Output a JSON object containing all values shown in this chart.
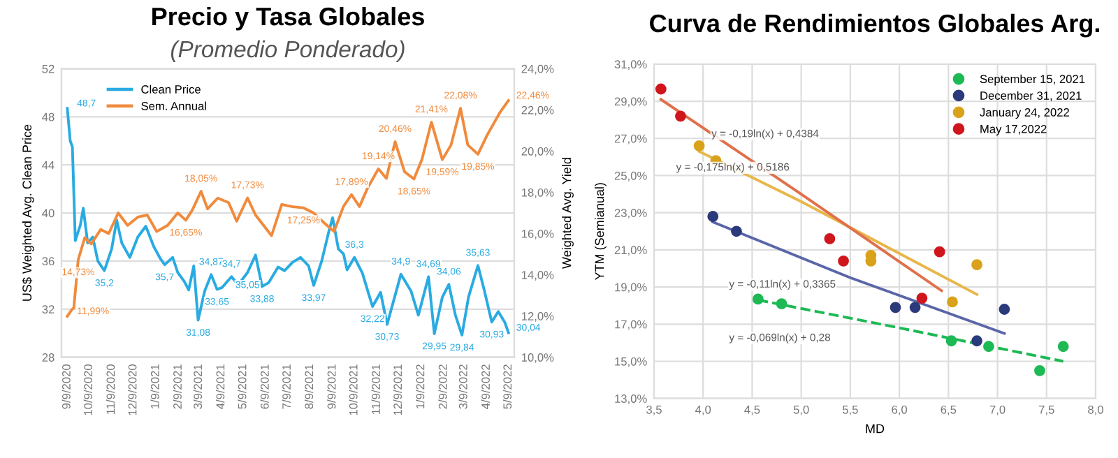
{
  "chart_data": [
    {
      "type": "line",
      "title": "Precio y Tasa Globales",
      "subtitle": "(Promedio Ponderado)",
      "ylabel": "US$ Weighted Avg. Clean Price",
      "y2label": "Weighted Avg. Yield",
      "xlim": [
        "2020-09-01",
        "2022-05-17"
      ],
      "ylim": [
        28,
        52
      ],
      "yticks": [
        28,
        32,
        36,
        40,
        44,
        48,
        52
      ],
      "y2lim": [
        10,
        24
      ],
      "y2ticks": [
        {
          "value": 10,
          "label": "10,0%"
        },
        {
          "value": 12,
          "label": "12,0%"
        },
        {
          "value": 14,
          "label": "14,0%"
        },
        {
          "value": 16,
          "label": "16,0%"
        },
        {
          "value": 18,
          "label": "18,0%"
        },
        {
          "value": 20,
          "label": "20,0%"
        },
        {
          "value": 22,
          "label": "22,0%"
        },
        {
          "value": 24,
          "label": "24,0%"
        }
      ],
      "xticks": [
        {
          "value": "2020-09-09",
          "label": "9/9/2020"
        },
        {
          "value": "2020-10-09",
          "label": "10/9/2020"
        },
        {
          "value": "2020-11-09",
          "label": "11/9/2020"
        },
        {
          "value": "2020-12-09",
          "label": "12/9/2020"
        },
        {
          "value": "2021-01-09",
          "label": "1/9/2021"
        },
        {
          "value": "2021-02-09",
          "label": "2/9/2021"
        },
        {
          "value": "2021-03-09",
          "label": "3/9/2021"
        },
        {
          "value": "2021-04-09",
          "label": "4/9/2021"
        },
        {
          "value": "2021-05-09",
          "label": "5/9/2021"
        },
        {
          "value": "2021-06-09",
          "label": "6/9/2021"
        },
        {
          "value": "2021-07-09",
          "label": "7/9/2021"
        },
        {
          "value": "2021-08-09",
          "label": "8/9/2021"
        },
        {
          "value": "2021-09-09",
          "label": "9/9/2021"
        },
        {
          "value": "2021-10-09",
          "label": "10/9/2021"
        },
        {
          "value": "2021-11-09",
          "label": "11/9/2021"
        },
        {
          "value": "2021-12-09",
          "label": "12/9/2021"
        },
        {
          "value": "2022-01-09",
          "label": "1/9/2022"
        },
        {
          "value": "2022-02-09",
          "label": "2/9/2022"
        },
        {
          "value": "2022-03-09",
          "label": "3/9/2022"
        },
        {
          "value": "2022-04-09",
          "label": "4/9/2022"
        },
        {
          "value": "2022-05-09",
          "label": "5/9/2022"
        }
      ],
      "grid": "y",
      "legend": "top left",
      "marker": "none",
      "line_style": "solid",
      "series": [
        {
          "name": "Clean Price",
          "color": "#29abe2",
          "axis": "y",
          "x": [
            "2020-09-09",
            "2020-09-13",
            "2020-09-16",
            "2020-09-20",
            "2020-09-27",
            "2020-10-01",
            "2020-10-07",
            "2020-10-14",
            "2020-10-21",
            "2020-10-30",
            "2020-11-09",
            "2020-11-16",
            "2020-11-23",
            "2020-12-04",
            "2020-12-15",
            "2020-12-26",
            "2021-01-06",
            "2021-01-15",
            "2021-01-21",
            "2021-02-01",
            "2021-02-08",
            "2021-02-17",
            "2021-02-23",
            "2021-03-02",
            "2021-03-08",
            "2021-03-17",
            "2021-03-26",
            "2021-04-03",
            "2021-04-10",
            "2021-04-23",
            "2021-05-02",
            "2021-05-15",
            "2021-05-26",
            "2021-06-04",
            "2021-06-13",
            "2021-06-26",
            "2021-07-05",
            "2021-07-16",
            "2021-07-27",
            "2021-08-07",
            "2021-08-14",
            "2021-08-25",
            "2021-09-04",
            "2021-09-09",
            "2021-09-17",
            "2021-09-24",
            "2021-09-29",
            "2021-10-09",
            "2021-10-20",
            "2021-10-29",
            "2021-11-03",
            "2021-11-14",
            "2021-11-23",
            "2021-12-12",
            "2021-12-26",
            "2022-01-05",
            "2022-01-19",
            "2022-01-27",
            "2022-02-07",
            "2022-02-16",
            "2022-02-25",
            "2022-03-06",
            "2022-03-15",
            "2022-03-28",
            "2022-04-06",
            "2022-04-16",
            "2022-04-25",
            "2022-05-04",
            "2022-05-09"
          ],
          "values": [
            48.7,
            46.0,
            45.5,
            37.7,
            39.0,
            40.4,
            37.5,
            38.0,
            36.0,
            35.2,
            37.0,
            39.4,
            37.5,
            36.3,
            38.0,
            38.9,
            37.2,
            36.2,
            35.7,
            36.3,
            35.04,
            34.3,
            33.6,
            35.6,
            31.08,
            33.5,
            34.87,
            33.65,
            33.8,
            34.7,
            34.0,
            35.05,
            36.5,
            33.88,
            34.2,
            35.5,
            35.2,
            35.9,
            36.3,
            35.6,
            33.97,
            36.0,
            38.5,
            39.6,
            37.0,
            36.6,
            35.27,
            36.3,
            35.0,
            33.2,
            32.22,
            33.4,
            30.73,
            34.9,
            33.5,
            31.5,
            34.69,
            29.95,
            33.0,
            34.06,
            31.5,
            29.84,
            33.0,
            35.63,
            33.5,
            30.93,
            31.8,
            30.9,
            30.04
          ],
          "value_labels": [
            "48,7",
            null,
            null,
            null,
            null,
            null,
            null,
            null,
            null,
            "35,2",
            null,
            null,
            null,
            null,
            null,
            null,
            null,
            null,
            "35,7",
            null,
            null,
            null,
            null,
            null,
            "31,08",
            null,
            "34,87",
            "33,65",
            null,
            "34,7",
            null,
            "35,05",
            null,
            "33,88",
            null,
            null,
            null,
            null,
            null,
            null,
            "33,97",
            null,
            null,
            null,
            null,
            null,
            null,
            "36,3",
            null,
            null,
            "32,22",
            null,
            "30,73",
            "34,9",
            null,
            null,
            "34,69",
            "29,95",
            null,
            "34,06",
            null,
            "29,84",
            null,
            "35,63",
            null,
            "30,93",
            null,
            null,
            "30,04"
          ]
        },
        {
          "name": "Sem. Annual",
          "color": "#f08a3c",
          "axis": "y2",
          "x": [
            "2020-09-09",
            "2020-09-15",
            "2020-09-18",
            "2020-09-24",
            "2020-10-03",
            "2020-10-12",
            "2020-10-25",
            "2020-11-05",
            "2020-11-18",
            "2020-12-01",
            "2020-12-15",
            "2020-12-28",
            "2021-01-10",
            "2021-01-25",
            "2021-02-08",
            "2021-02-19",
            "2021-02-28",
            "2021-03-12",
            "2021-03-21",
            "2021-04-04",
            "2021-04-19",
            "2021-04-30",
            "2021-05-15",
            "2021-05-26",
            "2021-06-06",
            "2021-06-17",
            "2021-07-01",
            "2021-07-16",
            "2021-07-31",
            "2021-08-14",
            "2021-08-29",
            "2021-09-11",
            "2021-09-24",
            "2021-10-05",
            "2021-10-16",
            "2021-10-27",
            "2021-11-11",
            "2021-11-22",
            "2021-12-04",
            "2021-12-17",
            "2021-12-30",
            "2022-01-10",
            "2022-01-23",
            "2022-02-07",
            "2022-02-19",
            "2022-03-04",
            "2022-03-14",
            "2022-03-28",
            "2022-04-10",
            "2022-04-28",
            "2022-05-09"
          ],
          "values": [
            11.99,
            12.3,
            12.4,
            14.73,
            15.8,
            15.5,
            16.2,
            16.0,
            17.0,
            16.4,
            16.8,
            16.9,
            16.1,
            16.4,
            17.0,
            16.65,
            17.14,
            18.05,
            17.2,
            17.72,
            17.5,
            16.6,
            17.73,
            16.9,
            16.4,
            15.9,
            17.41,
            17.3,
            17.25,
            17.0,
            16.5,
            16.1,
            17.32,
            17.89,
            17.31,
            18.2,
            19.14,
            18.68,
            20.46,
            19.0,
            18.65,
            19.6,
            21.41,
            19.59,
            20.3,
            22.08,
            20.3,
            19.85,
            20.8,
            21.92,
            22.46
          ],
          "value_labels": [
            "11,99%",
            null,
            null,
            "14,73%",
            null,
            null,
            null,
            null,
            null,
            null,
            null,
            null,
            null,
            null,
            null,
            "16,65%",
            null,
            "18,05%",
            null,
            null,
            null,
            null,
            "17,73%",
            null,
            null,
            null,
            null,
            null,
            "17,25%",
            null,
            null,
            null,
            null,
            "17,89%",
            null,
            null,
            "19,14%",
            null,
            "20,46%",
            null,
            "18,65%",
            null,
            "21,41%",
            "19,59%",
            null,
            "22,08%",
            null,
            "19,85%",
            null,
            null,
            "22,46%"
          ]
        }
      ]
    },
    {
      "type": "scatter",
      "title": "Curva de Rendimientos Globales Arg.",
      "xlabel": "MD",
      "ylabel": "YTM (Semianual)",
      "xlim": [
        3.5,
        8.0
      ],
      "xticks": [
        {
          "value": 3.5,
          "label": "3,5"
        },
        {
          "value": 4.0,
          "label": "4,0"
        },
        {
          "value": 4.5,
          "label": "4,5"
        },
        {
          "value": 5.0,
          "label": "5,0"
        },
        {
          "value": 5.5,
          "label": "5,5"
        },
        {
          "value": 6.0,
          "label": "6,0"
        },
        {
          "value": 6.5,
          "label": "6,5"
        },
        {
          "value": 7.0,
          "label": "7,0"
        },
        {
          "value": 7.5,
          "label": "7,5"
        },
        {
          "value": 8.0,
          "label": "8,0"
        }
      ],
      "ylim": [
        13,
        31
      ],
      "yticks": [
        {
          "value": 13,
          "label": "13,0%"
        },
        {
          "value": 15,
          "label": "15,0%"
        },
        {
          "value": 17,
          "label": "17,0%"
        },
        {
          "value": 19,
          "label": "19,0%"
        },
        {
          "value": 21,
          "label": "21,0%"
        },
        {
          "value": 23,
          "label": "23,0%"
        },
        {
          "value": 25,
          "label": "25,0%"
        },
        {
          "value": 27,
          "label": "27,0%"
        },
        {
          "value": 29,
          "label": "29,0%"
        },
        {
          "value": 31,
          "label": "31,0%"
        }
      ],
      "grid": true,
      "legend": "top right",
      "annotations": [
        "y = -0,19ln(x) + 0,4384",
        "y = -0,175ln(x) + 0,5186",
        "y = -0,11ln(x) + 0,3365",
        "y = -0,069ln(x) + 0,28"
      ],
      "series": [
        {
          "name": "September 15, 2021",
          "color": "#1db954",
          "x": [
            4.56,
            4.8,
            6.53,
            6.91,
            7.43,
            7.67
          ],
          "values": [
            18.35,
            18.1,
            16.1,
            15.8,
            14.5,
            15.8
          ]
        },
        {
          "name": "December 31, 2021",
          "color": "#2b3a7a",
          "x": [
            4.1,
            4.34,
            5.96,
            6.16,
            6.79,
            7.07
          ],
          "values": [
            22.8,
            22.0,
            17.9,
            17.9,
            16.1,
            17.8
          ]
        },
        {
          "name": "January 24, 2022",
          "color": "#d9a21b",
          "x": [
            3.96,
            4.13,
            5.71,
            5.71,
            6.79,
            6.54
          ],
          "values": [
            26.6,
            25.8,
            20.7,
            20.4,
            20.2,
            18.2
          ]
        },
        {
          "name": "May 17,2022",
          "color": "#d0161d",
          "x": [
            3.57,
            3.77,
            5.29,
            5.43,
            6.41,
            6.23
          ],
          "values": [
            29.66,
            28.2,
            21.6,
            20.4,
            20.9,
            18.4
          ]
        },
        {
          "type": "line",
          "color": "#1db954",
          "line_style": "dashed",
          "x": [
            4.56,
            6.0,
            7.67
          ],
          "values": [
            18.3,
            16.8,
            15.0
          ]
        },
        {
          "type": "line",
          "color": "#5a66a8",
          "line_style": "solid",
          "x": [
            4.1,
            5.5,
            7.07
          ],
          "values": [
            22.5,
            19.5,
            16.5
          ]
        },
        {
          "type": "line",
          "color": "#e8b64a",
          "line_style": "solid",
          "x": [
            3.96,
            5.0,
            6.79
          ],
          "values": [
            26.3,
            23.6,
            18.6
          ]
        },
        {
          "type": "line",
          "color": "#e0704a",
          "line_style": "solid",
          "x": [
            3.57,
            5.0,
            6.43
          ],
          "values": [
            29.1,
            24.0,
            18.8
          ]
        }
      ]
    }
  ]
}
